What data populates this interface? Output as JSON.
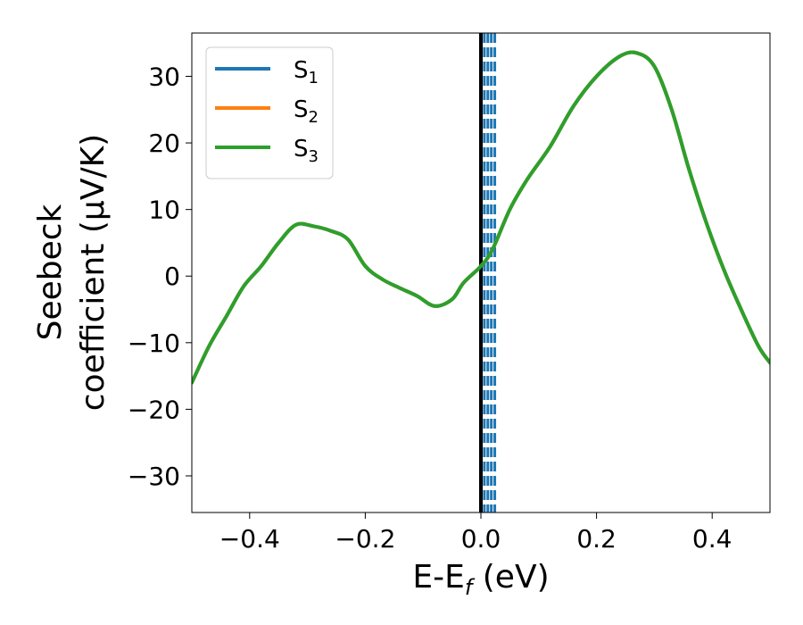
{
  "chart_data": {
    "type": "line",
    "xlabel": "E-E",
    "xlabel_sub": "f",
    "xlabel_unit": " (eV)",
    "ylabel_line1": "Seebeck",
    "ylabel_line2": "coefficient  (μV/K)",
    "xlim": [
      -0.5,
      0.5
    ],
    "ylim": [
      -35.5,
      36.5
    ],
    "xticks": [
      -0.4,
      -0.2,
      0.0,
      0.2,
      0.4
    ],
    "xtick_labels": [
      "−0.4",
      "−0.2",
      "0.0",
      "0.2",
      "0.4"
    ],
    "yticks": [
      -30,
      -20,
      -10,
      0,
      10,
      20,
      30
    ],
    "ytick_labels": [
      "−30",
      "−20",
      "−10",
      "0",
      "10",
      "20",
      "30"
    ],
    "legend": {
      "position": "top-left"
    },
    "series": [
      {
        "name": "S",
        "name_sub": "1",
        "color": "#1f77b4"
      },
      {
        "name": "S",
        "name_sub": "2",
        "color": "#ff7f0e"
      },
      {
        "name": "S",
        "name_sub": "3",
        "color": "#2ca02c"
      }
    ],
    "curve": {
      "x": [
        -0.5,
        -0.47,
        -0.44,
        -0.41,
        -0.38,
        -0.35,
        -0.32,
        -0.29,
        -0.26,
        -0.23,
        -0.2,
        -0.17,
        -0.14,
        -0.11,
        -0.08,
        -0.05,
        -0.03,
        0.0,
        0.02,
        0.05,
        0.08,
        0.12,
        0.16,
        0.2,
        0.24,
        0.27,
        0.3,
        0.33,
        0.36,
        0.39,
        0.42,
        0.45,
        0.48,
        0.5
      ],
      "y": [
        -16.0,
        -10.5,
        -6.0,
        -1.5,
        1.5,
        5.0,
        7.7,
        7.5,
        6.8,
        5.5,
        1.5,
        -0.5,
        -1.8,
        -3.0,
        -4.5,
        -3.5,
        -1.0,
        1.5,
        4.0,
        10.0,
        14.5,
        19.5,
        25.5,
        30.0,
        33.0,
        33.5,
        31.5,
        25.0,
        16.0,
        8.0,
        1.0,
        -5.0,
        -10.5,
        -13.0
      ]
    },
    "vertical_lines": [
      {
        "x": 0.0,
        "color": "#000000",
        "style": "solid"
      },
      {
        "x": 0.006,
        "color": "#1f77b4",
        "style": "dashed"
      },
      {
        "x": 0.012,
        "color": "#1f77b4",
        "style": "dashed"
      },
      {
        "x": 0.018,
        "color": "#1f77b4",
        "style": "dashed"
      },
      {
        "x": 0.024,
        "color": "#1f77b4",
        "style": "dashed"
      }
    ]
  }
}
